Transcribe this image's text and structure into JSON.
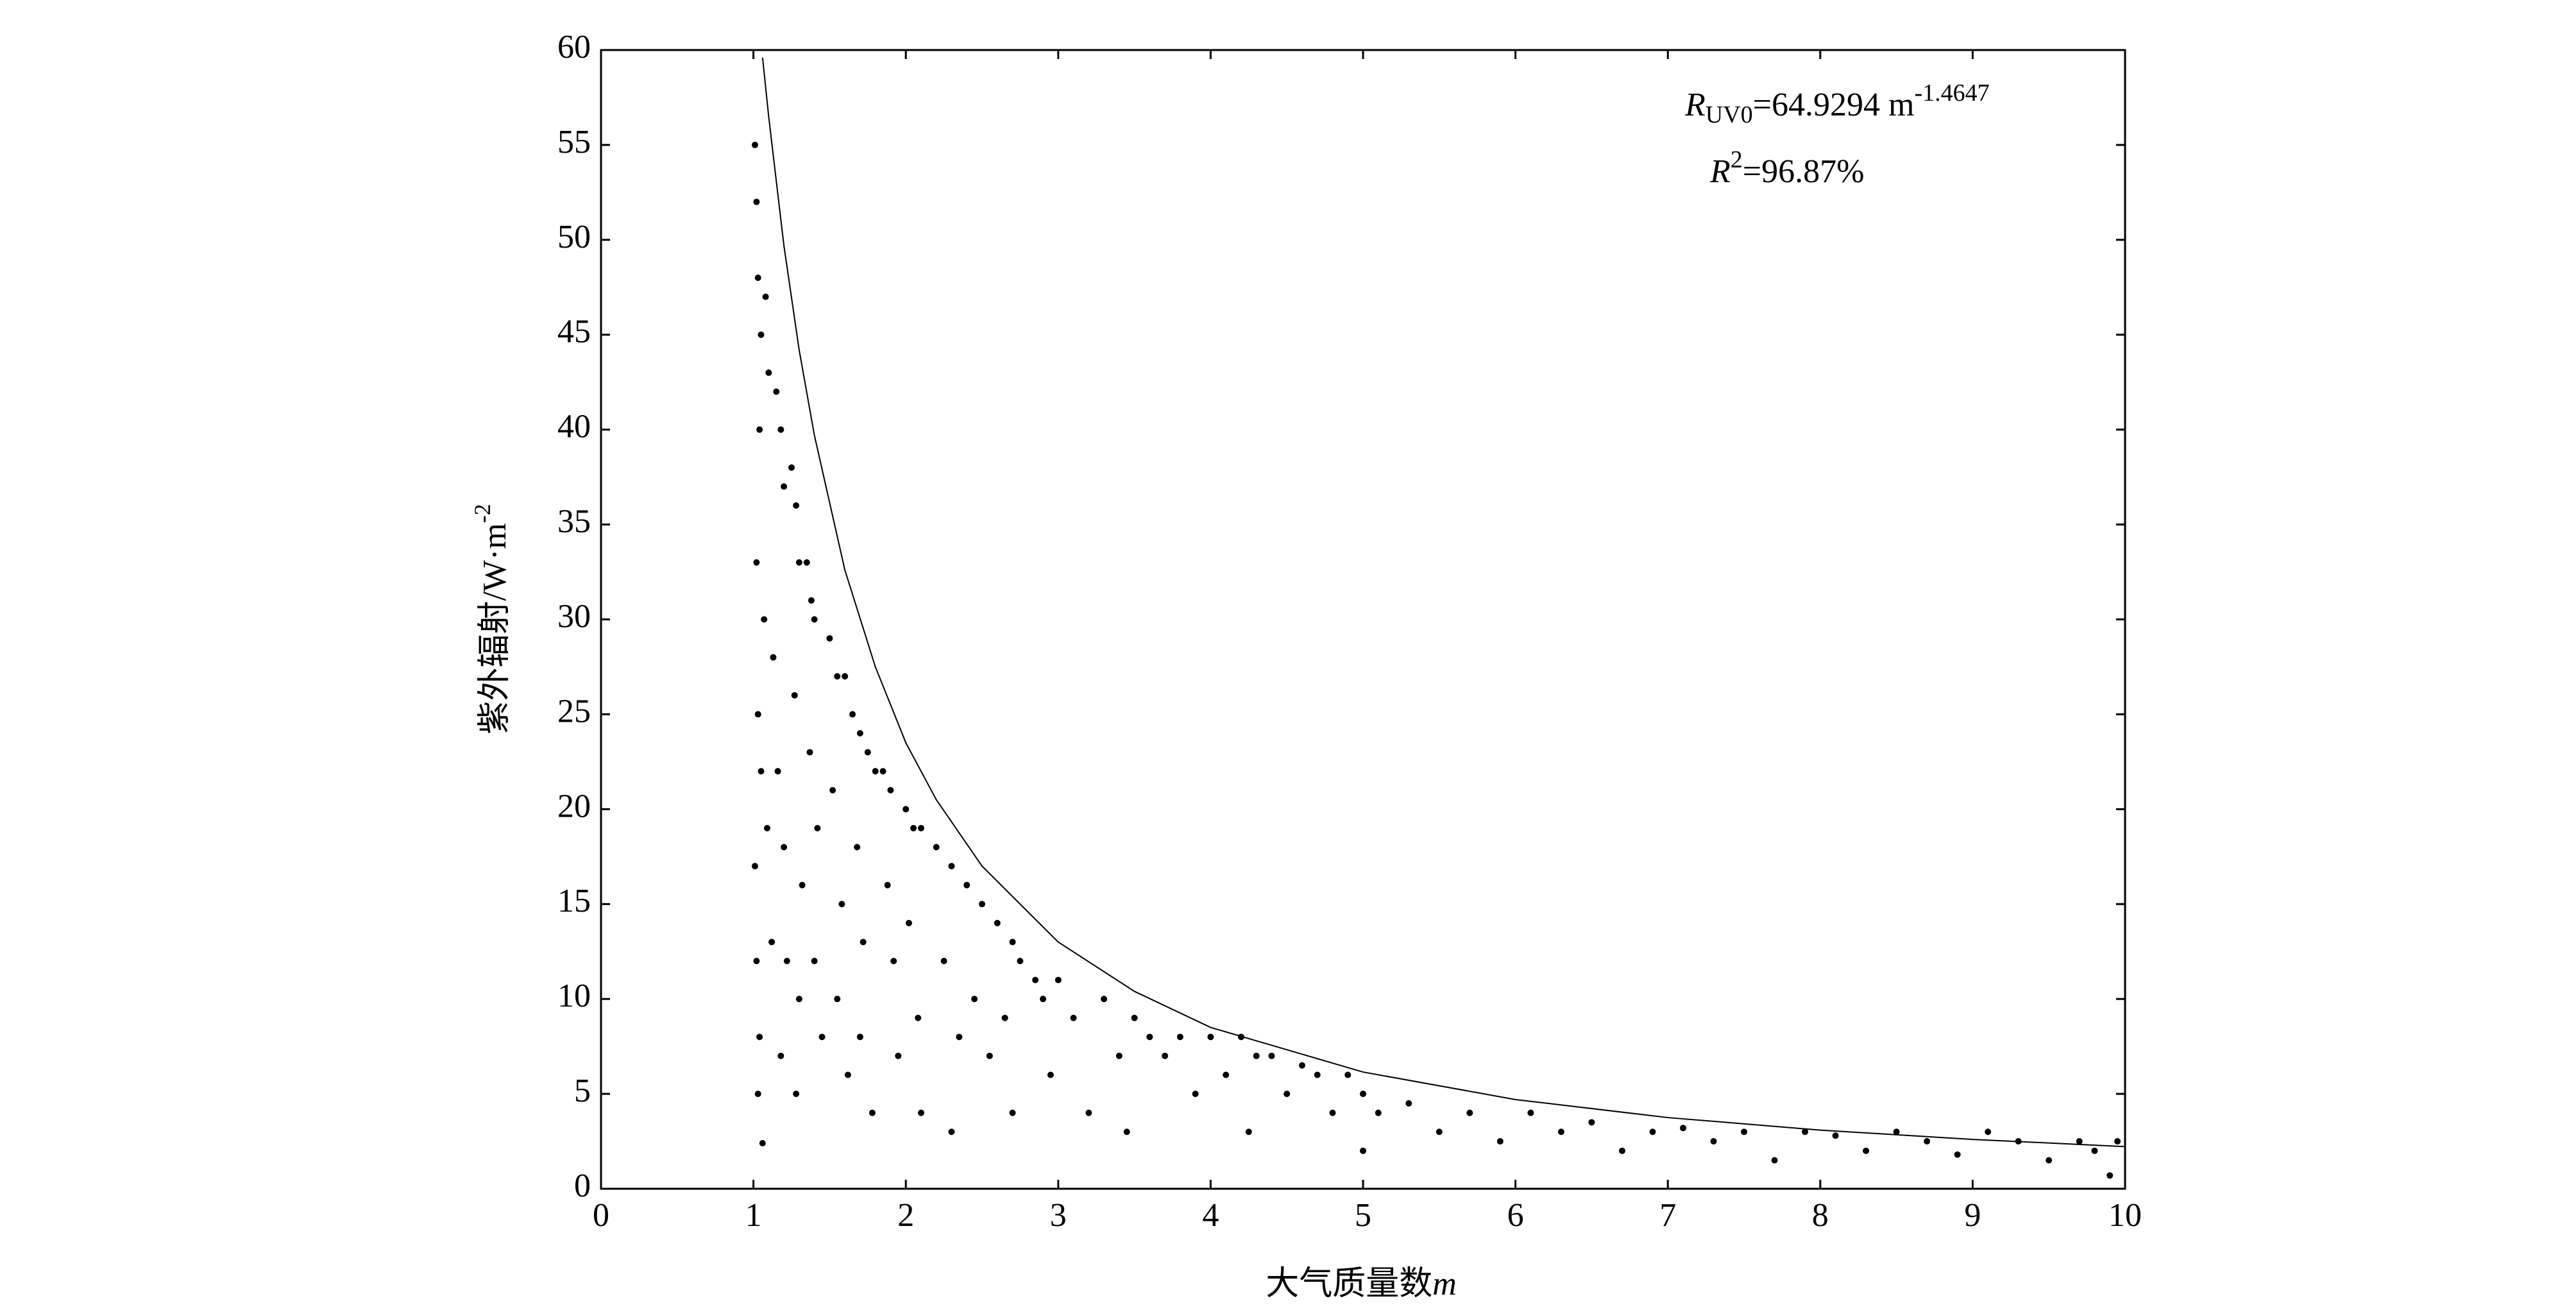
{
  "chart_data": {
    "type": "scatter",
    "x_label": {
      "text": "大气质量数",
      "variable": "m"
    },
    "y_label": {
      "text": "紫外辐射/W·m",
      "superscript": "-2"
    },
    "fit_label": {
      "symbol": "R",
      "subscript": "UV0",
      "text": "=64.9294 m",
      "superscript": "-1.4647"
    },
    "r2_label": {
      "symbol": "R",
      "superscript": "2",
      "text": "=96.87%"
    },
    "xlim": [
      0,
      10
    ],
    "ylim": [
      0,
      60
    ],
    "xticks": [
      0,
      1,
      2,
      3,
      4,
      5,
      6,
      7,
      8,
      9,
      10
    ],
    "yticks": [
      0,
      5,
      10,
      15,
      20,
      25,
      30,
      35,
      40,
      45,
      50,
      55,
      60
    ],
    "color": "#000000",
    "x": [
      1.02,
      1.03,
      1.05,
      1.01,
      1.04,
      1.02,
      1.03,
      1.01,
      1.05,
      1.02,
      1.04,
      1.03,
      1.06,
      1.08,
      1.1,
      1.07,
      1.09,
      1.12,
      1.15,
      1.18,
      1.2,
      1.13,
      1.16,
      1.2,
      1.22,
      1.18,
      1.25,
      1.28,
      1.3,
      1.27,
      1.32,
      1.3,
      1.28,
      1.35,
      1.38,
      1.4,
      1.37,
      1.42,
      1.4,
      1.45,
      1.5,
      1.55,
      1.6,
      1.52,
      1.58,
      1.55,
      1.62,
      1.65,
      1.7,
      1.75,
      1.68,
      1.72,
      1.7,
      1.78,
      1.8,
      1.85,
      1.9,
      1.88,
      1.92,
      1.95,
      2.0,
      2.05,
      2.1,
      2.02,
      2.08,
      2.1,
      2.2,
      2.3,
      2.25,
      2.35,
      2.3,
      2.4,
      2.5,
      2.45,
      2.55,
      2.6,
      2.7,
      2.65,
      2.75,
      2.7,
      2.85,
      2.9,
      2.95,
      3.0,
      3.1,
      3.2,
      3.3,
      3.4,
      3.5,
      3.45,
      3.6,
      3.7,
      3.8,
      3.9,
      4.0,
      4.1,
      4.2,
      4.3,
      4.25,
      4.4,
      4.5,
      4.6,
      4.7,
      4.8,
      4.9,
      5.0,
      5.0,
      5.1,
      5.3,
      5.5,
      5.7,
      5.9,
      6.1,
      6.3,
      6.5,
      6.7,
      6.9,
      7.1,
      7.3,
      7.5,
      7.7,
      7.9,
      8.1,
      8.3,
      8.5,
      8.7,
      8.9,
      9.1,
      9.3,
      9.5,
      9.7,
      9.8,
      9.9,
      9.95
    ],
    "values": [
      52,
      48,
      45,
      55,
      40,
      33,
      25,
      17,
      22,
      12,
      8,
      5,
      2.4,
      47,
      43,
      30,
      19,
      13,
      42,
      40,
      37,
      28,
      22,
      18,
      12,
      7,
      38,
      36,
      33,
      26,
      16,
      10,
      5,
      33,
      31,
      30,
      23,
      19,
      12,
      8,
      29,
      27,
      27,
      21,
      15,
      10,
      6,
      25,
      24,
      23,
      18,
      13,
      8,
      4,
      22,
      22,
      21,
      16,
      12,
      7,
      20,
      19,
      19,
      14,
      9,
      4,
      18,
      17,
      12,
      8,
      3,
      16,
      15,
      10,
      7,
      14,
      13,
      9,
      12,
      4,
      11,
      10,
      6,
      11,
      9,
      4,
      10,
      7,
      9,
      3,
      8,
      7,
      8,
      5,
      8,
      6,
      8,
      7,
      3,
      7,
      5,
      6.5,
      6,
      4,
      6,
      5,
      2,
      4,
      4.5,
      3,
      4,
      2.5,
      4,
      3,
      3.5,
      2,
      3,
      3.2,
      2.5,
      3,
      1.5,
      3,
      2.8,
      2,
      3,
      2.5,
      1.8,
      3,
      2.5,
      1.5,
      2.5,
      2.0,
      0.7,
      2.5
    ],
    "fit": {
      "color": "#000000",
      "x": [
        1.06,
        1.1,
        1.2,
        1.3,
        1.4,
        1.6,
        1.8,
        2,
        2.2,
        2.5,
        3,
        3.5,
        4,
        5,
        6,
        7,
        8,
        9,
        10
      ],
      "values": [
        59.6,
        56.5,
        49.7,
        44.2,
        39.7,
        32.6,
        27.5,
        23.5,
        20.5,
        17.0,
        13.0,
        10.4,
        8.5,
        6.15,
        4.7,
        3.75,
        3.09,
        2.6,
        2.22
      ]
    }
  }
}
